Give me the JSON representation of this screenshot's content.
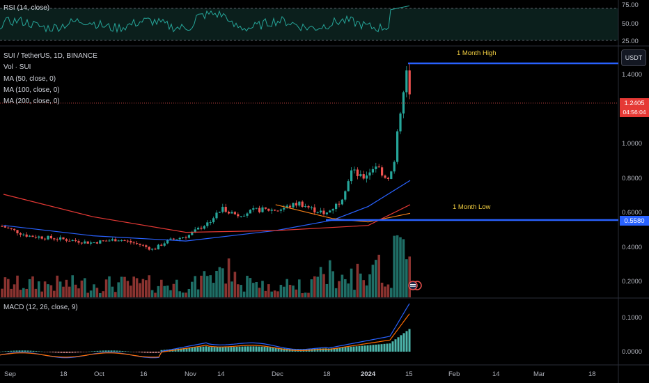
{
  "rsi": {
    "label": "RSI (14, close)",
    "axis": [
      "75.00",
      "50.00",
      "25.00"
    ]
  },
  "main": {
    "legend": [
      "SUI / TetherUS, 1D, BINANCE",
      "Vol · SUI",
      "MA (50, close, 0)",
      "MA (100, close, 0)",
      "MA (200, close, 0)"
    ],
    "currency_button": "USDT",
    "price_axis": [
      "1.4000",
      "1.0000",
      "0.8000",
      "0.6000",
      "0.4000",
      "0.2000"
    ],
    "last_price": "1.2405",
    "countdown": "04:56:04",
    "low_price": "0.5580",
    "annotations": {
      "high": "1 Month High",
      "low": "1 Month Low"
    }
  },
  "macd": {
    "label": "MACD (12, 26, close, 9)",
    "axis": [
      "0.1000",
      "0.0000"
    ]
  },
  "time_axis": [
    "Sep",
    "18",
    "Oct",
    "16",
    "Nov",
    "14",
    "Dec",
    "18",
    "2024",
    "15",
    "Feb",
    "14",
    "Mar",
    "18"
  ],
  "colors": {
    "up": "#26a69a",
    "down": "#ef5350",
    "ma50": "#2962ff",
    "ma100": "#f57f17",
    "ma200": "#e53935",
    "rsi": "#26a69a",
    "macd": "#2962ff",
    "signal": "#ff6d00",
    "level": "#2962ff",
    "annotation": "#f5d142"
  },
  "chart_data": {
    "type": "line",
    "title": "SUI / TetherUS, 1D, BINANCE",
    "ylim": [
      0.1,
      1.5
    ],
    "x_range": [
      "2023-09-01",
      "2024-01-15"
    ],
    "series": [
      {
        "name": "MA (50, close, 0)",
        "x": [
          "2023-09-01",
          "2023-10-01",
          "2023-11-01",
          "2023-12-01",
          "2023-12-20",
          "2024-01-01",
          "2024-01-15"
        ],
        "values": [
          0.53,
          0.47,
          0.44,
          0.5,
          0.56,
          0.64,
          0.79
        ]
      },
      {
        "name": "MA (100, close, 0)",
        "x": [
          "2023-12-01",
          "2023-12-20",
          "2024-01-01",
          "2024-01-15"
        ],
        "values": [
          0.65,
          0.57,
          0.55,
          0.6
        ]
      },
      {
        "name": "MA (200, close, 0)",
        "x": [
          "2023-09-01",
          "2023-10-01",
          "2023-11-01",
          "2023-12-01",
          "2024-01-01",
          "2024-01-15"
        ],
        "values": [
          0.71,
          0.58,
          0.49,
          0.5,
          0.53,
          0.65
        ]
      }
    ],
    "levels": {
      "month_high": 1.47,
      "month_low": 0.558,
      "last": 1.2405
    },
    "grid": false,
    "legend": "top-left"
  }
}
